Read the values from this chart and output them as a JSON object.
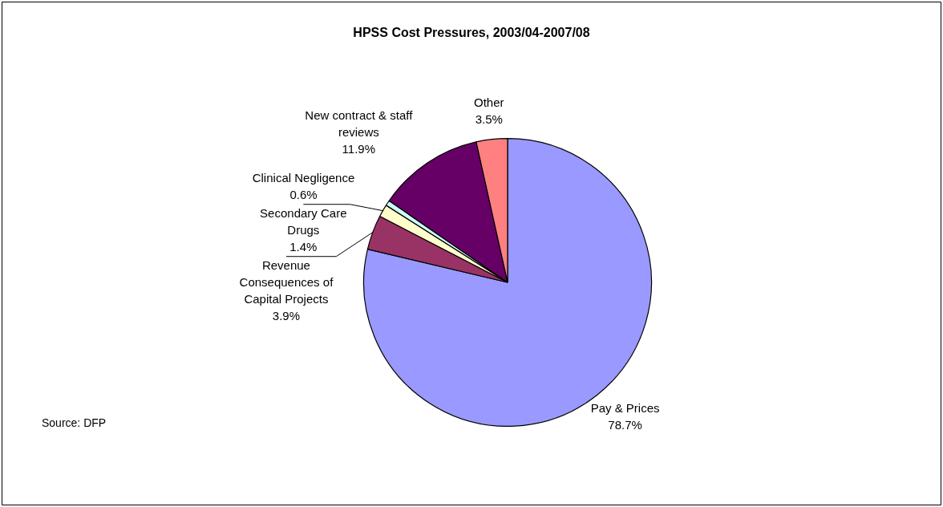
{
  "chart_data": {
    "type": "pie",
    "title": "HPSS Cost Pressures, 2003/04-2007/08",
    "categories": [
      "Pay & Prices",
      "Revenue Consequences of Capital Projects",
      "Secondary Care Drugs",
      "Clinical Negligence",
      "New contract & staff reviews",
      "Other"
    ],
    "values": [
      78.7,
      3.9,
      1.4,
      0.6,
      11.9,
      3.5
    ],
    "colors": [
      "#9999ff",
      "#993366",
      "#ffffcc",
      "#ccffff",
      "#660066",
      "#ff8080"
    ],
    "value_labels": [
      "78.7%",
      "3.9%",
      "1.4%",
      "0.6%",
      "11.9%",
      "3.5%"
    ],
    "annotations": [
      "Source: DFP"
    ],
    "legend": false
  }
}
